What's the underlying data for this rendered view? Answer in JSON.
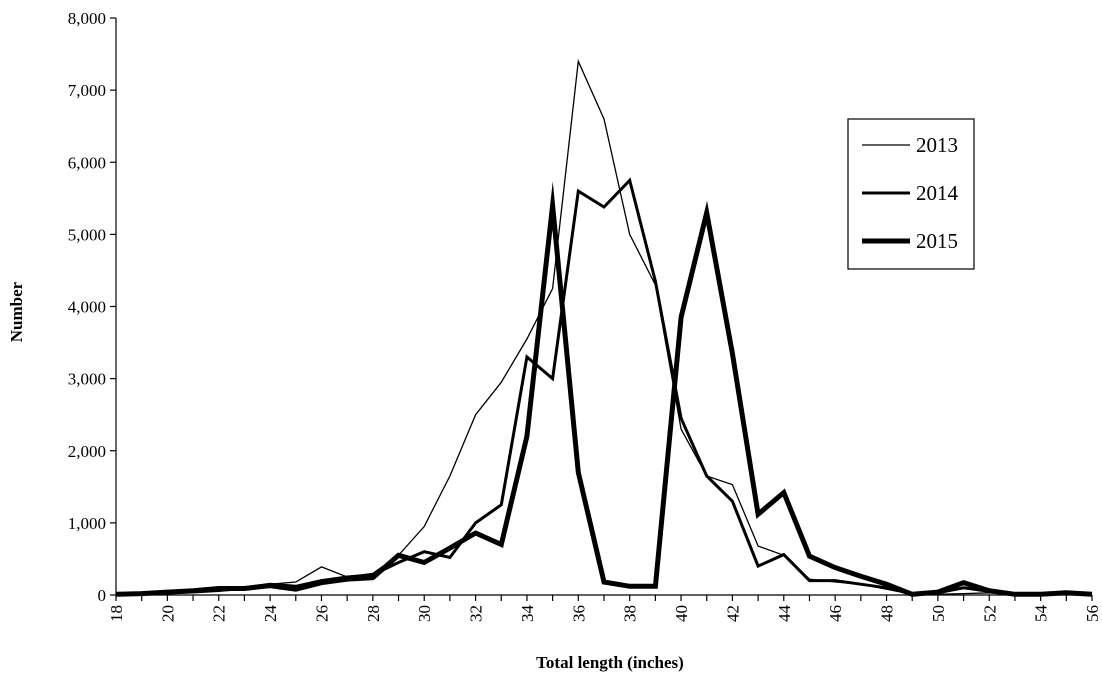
{
  "chart_data": {
    "type": "line",
    "xlabel": "Total length (inches)",
    "ylabel": "Number",
    "xlim": [
      18,
      56
    ],
    "ylim": [
      0,
      8000
    ],
    "x_ticks": [
      18,
      20,
      22,
      24,
      26,
      28,
      30,
      32,
      34,
      36,
      38,
      40,
      42,
      44,
      46,
      48,
      50,
      52,
      54,
      56
    ],
    "x_tick_labels": [
      "18",
      "20",
      "22",
      "24",
      "26",
      "28",
      "30",
      "32",
      "34",
      "36",
      "38",
      "40",
      "42",
      "44",
      "46",
      "48",
      "50",
      "52",
      "54",
      "56"
    ],
    "y_ticks": [
      0,
      1000,
      2000,
      3000,
      4000,
      5000,
      6000,
      7000,
      8000
    ],
    "y_tick_labels": [
      "0",
      "1,000",
      "2,000",
      "3,000",
      "4,000",
      "5,000",
      "6,000",
      "7,000",
      "8,000"
    ],
    "grid": false,
    "legend_position": "right",
    "x": [
      18,
      19,
      20,
      21,
      22,
      23,
      24,
      25,
      26,
      27,
      28,
      29,
      30,
      31,
      32,
      33,
      34,
      35,
      36,
      37,
      38,
      39,
      40,
      41,
      42,
      43,
      44,
      45,
      46,
      47,
      48,
      49,
      50,
      51,
      52,
      53,
      54,
      55,
      56
    ],
    "series": [
      {
        "name": "2013",
        "color": "#000000",
        "values": [
          10,
          10,
          20,
          30,
          50,
          80,
          150,
          180,
          390,
          250,
          300,
          550,
          950,
          1650,
          2500,
          2950,
          3550,
          4250,
          7400,
          6600,
          5000,
          4300,
          2300,
          1650,
          1530,
          680,
          550,
          220,
          180,
          150,
          80,
          10,
          10,
          20,
          30,
          10,
          10,
          10,
          10
        ]
      },
      {
        "name": "2014",
        "color": "#000000",
        "values": [
          10,
          10,
          30,
          50,
          80,
          100,
          150,
          120,
          200,
          250,
          280,
          450,
          600,
          520,
          1000,
          1250,
          3300,
          3000,
          5600,
          5380,
          5750,
          4350,
          2450,
          1650,
          1300,
          400,
          560,
          200,
          200,
          150,
          100,
          20,
          30,
          100,
          50,
          10,
          10,
          20,
          10
        ]
      },
      {
        "name": "2015",
        "color": "#000000",
        "values": [
          10,
          20,
          40,
          60,
          90,
          90,
          130,
          80,
          170,
          220,
          240,
          550,
          450,
          650,
          860,
          700,
          2200,
          5400,
          1700,
          180,
          120,
          120,
          3850,
          5300,
          3350,
          1120,
          1420,
          540,
          380,
          260,
          150,
          10,
          40,
          170,
          60,
          10,
          10,
          30,
          10
        ]
      }
    ]
  }
}
